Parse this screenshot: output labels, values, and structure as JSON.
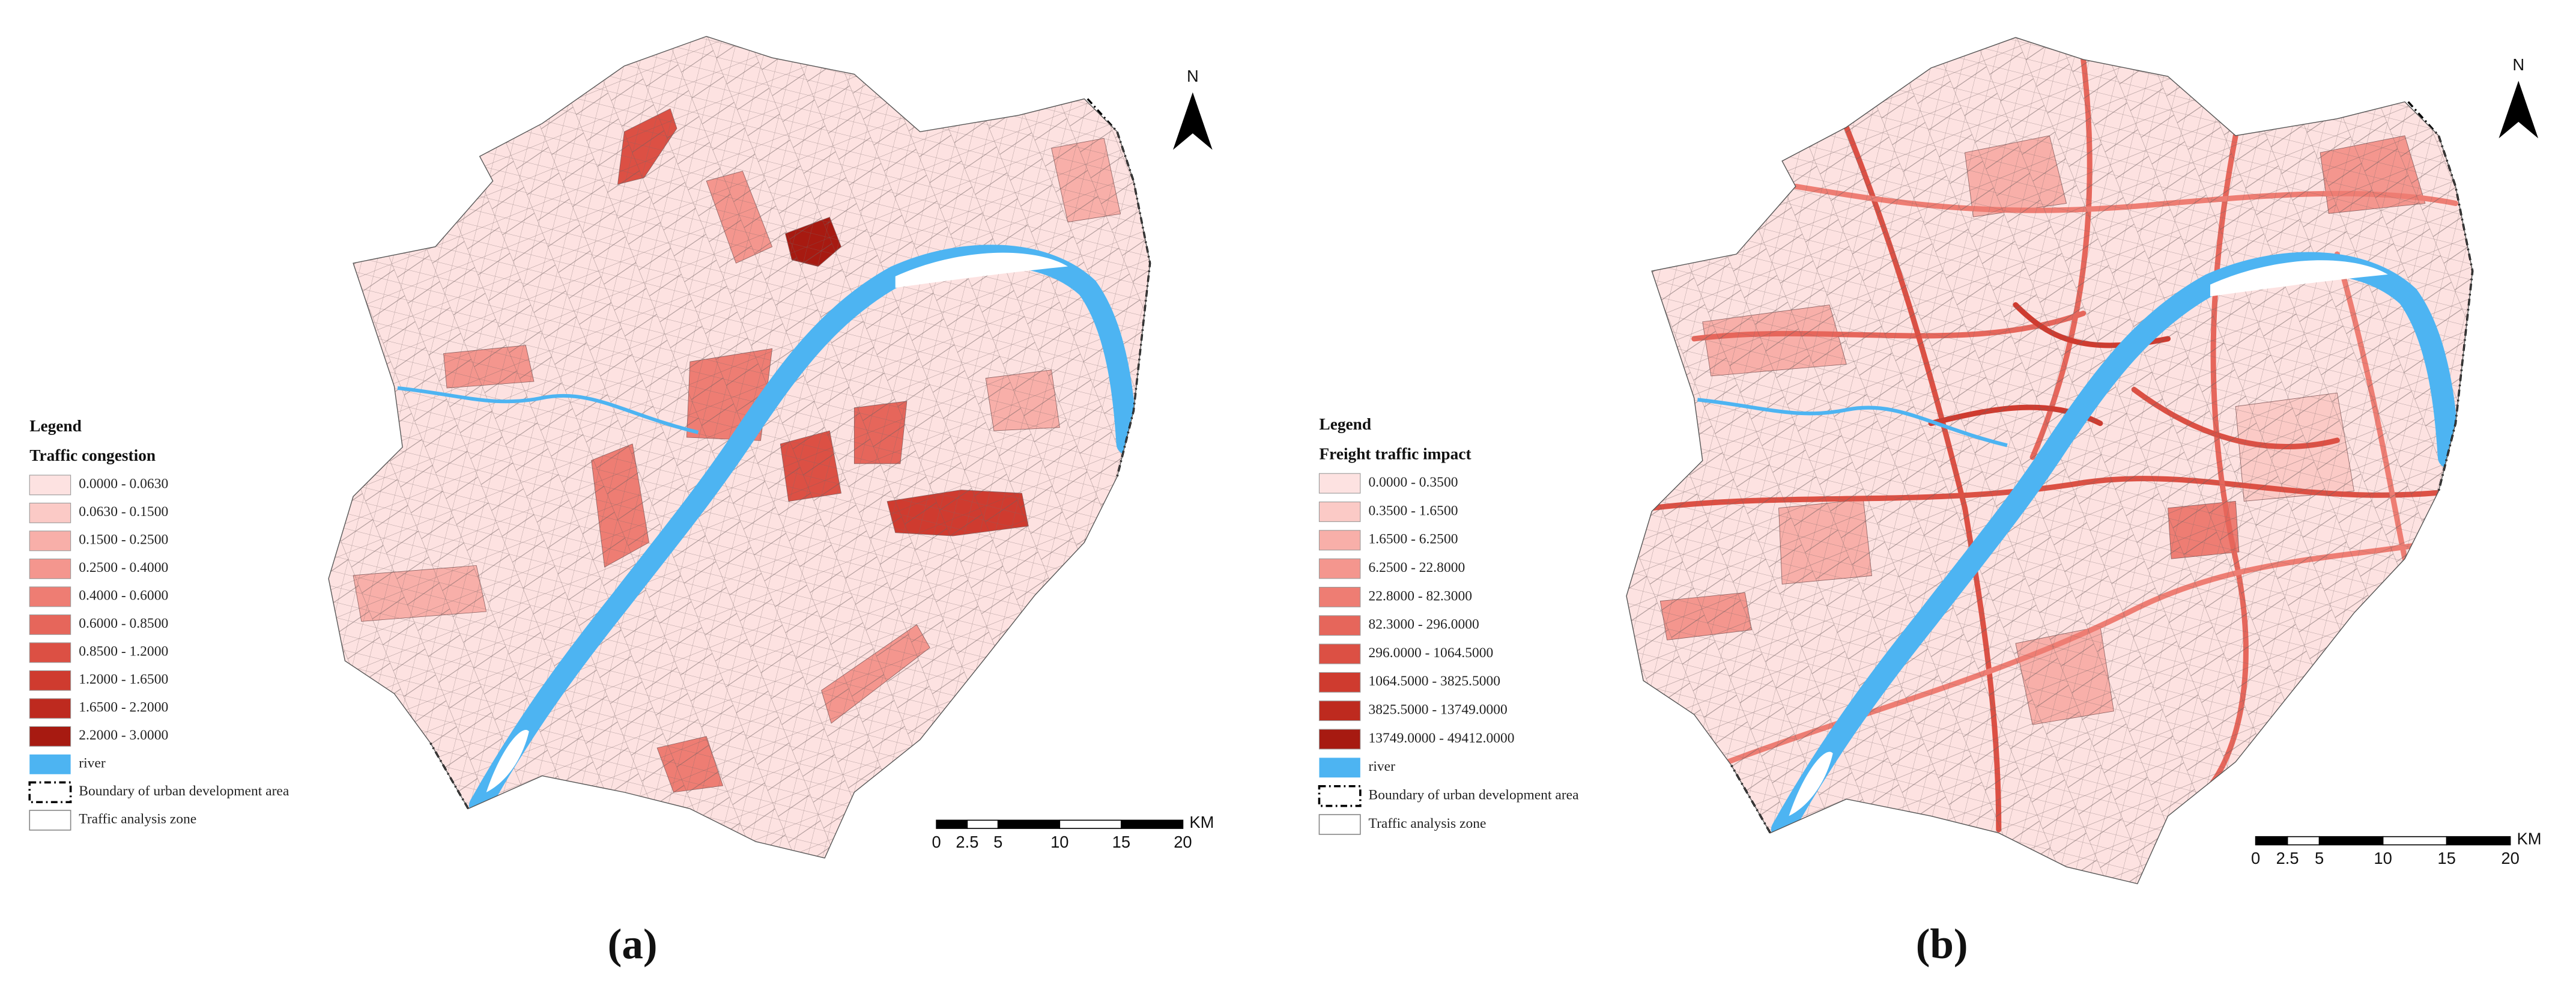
{
  "panels": [
    {
      "label": "(a)",
      "north": "N",
      "legend": {
        "heading": "Legend",
        "title": "Traffic congestion",
        "classes": [
          {
            "label": "0.0000 - 0.0630",
            "color": "#fde2e1"
          },
          {
            "label": "0.0630 - 0.1500",
            "color": "#fbcac6"
          },
          {
            "label": "0.1500 - 0.2500",
            "color": "#f8afa9"
          },
          {
            "label": "0.2500 - 0.4000",
            "color": "#f4968e"
          },
          {
            "label": "0.4000 - 0.6000",
            "color": "#ee7d73"
          },
          {
            "label": "0.6000 - 0.8500",
            "color": "#e6665b"
          },
          {
            "label": "0.8500 - 1.2000",
            "color": "#dc5044"
          },
          {
            "label": "1.2000 - 1.6500",
            "color": "#cf3b2f"
          },
          {
            "label": "1.6500 - 2.2000",
            "color": "#be2a1f"
          },
          {
            "label": "2.2000 - 3.0000",
            "color": "#a71a11"
          }
        ],
        "river": {
          "label": "river",
          "color": "#4db4f2"
        },
        "boundary": "Boundary of urban development area",
        "zone": "Traffic analysis zone"
      },
      "scale_bar": {
        "ticks": [
          0,
          2.5,
          5,
          10,
          15,
          20
        ],
        "unit": "KM"
      }
    },
    {
      "label": "(b)",
      "north": "N",
      "legend": {
        "heading": "Legend",
        "title": "Freight traffic impact",
        "classes": [
          {
            "label": "0.0000 - 0.3500",
            "color": "#fde2e1"
          },
          {
            "label": "0.3500 - 1.6500",
            "color": "#fbcac6"
          },
          {
            "label": "1.6500 - 6.2500",
            "color": "#f8afa9"
          },
          {
            "label": "6.2500 - 22.8000",
            "color": "#f4968e"
          },
          {
            "label": "22.8000 - 82.3000",
            "color": "#ee7d73"
          },
          {
            "label": "82.3000 - 296.0000",
            "color": "#e6665b"
          },
          {
            "label": "296.0000 - 1064.5000",
            "color": "#dc5044"
          },
          {
            "label": "1064.5000 - 3825.5000",
            "color": "#cf3b2f"
          },
          {
            "label": "3825.5000 - 13749.0000",
            "color": "#be2a1f"
          },
          {
            "label": "13749.0000 - 49412.0000",
            "color": "#a71a11"
          }
        ],
        "river": {
          "label": "river",
          "color": "#4db4f2"
        },
        "boundary": "Boundary of urban development area",
        "zone": "Traffic analysis zone"
      },
      "scale_bar": {
        "ticks": [
          0,
          2.5,
          5,
          10,
          15,
          20
        ],
        "unit": "KM"
      }
    }
  ]
}
